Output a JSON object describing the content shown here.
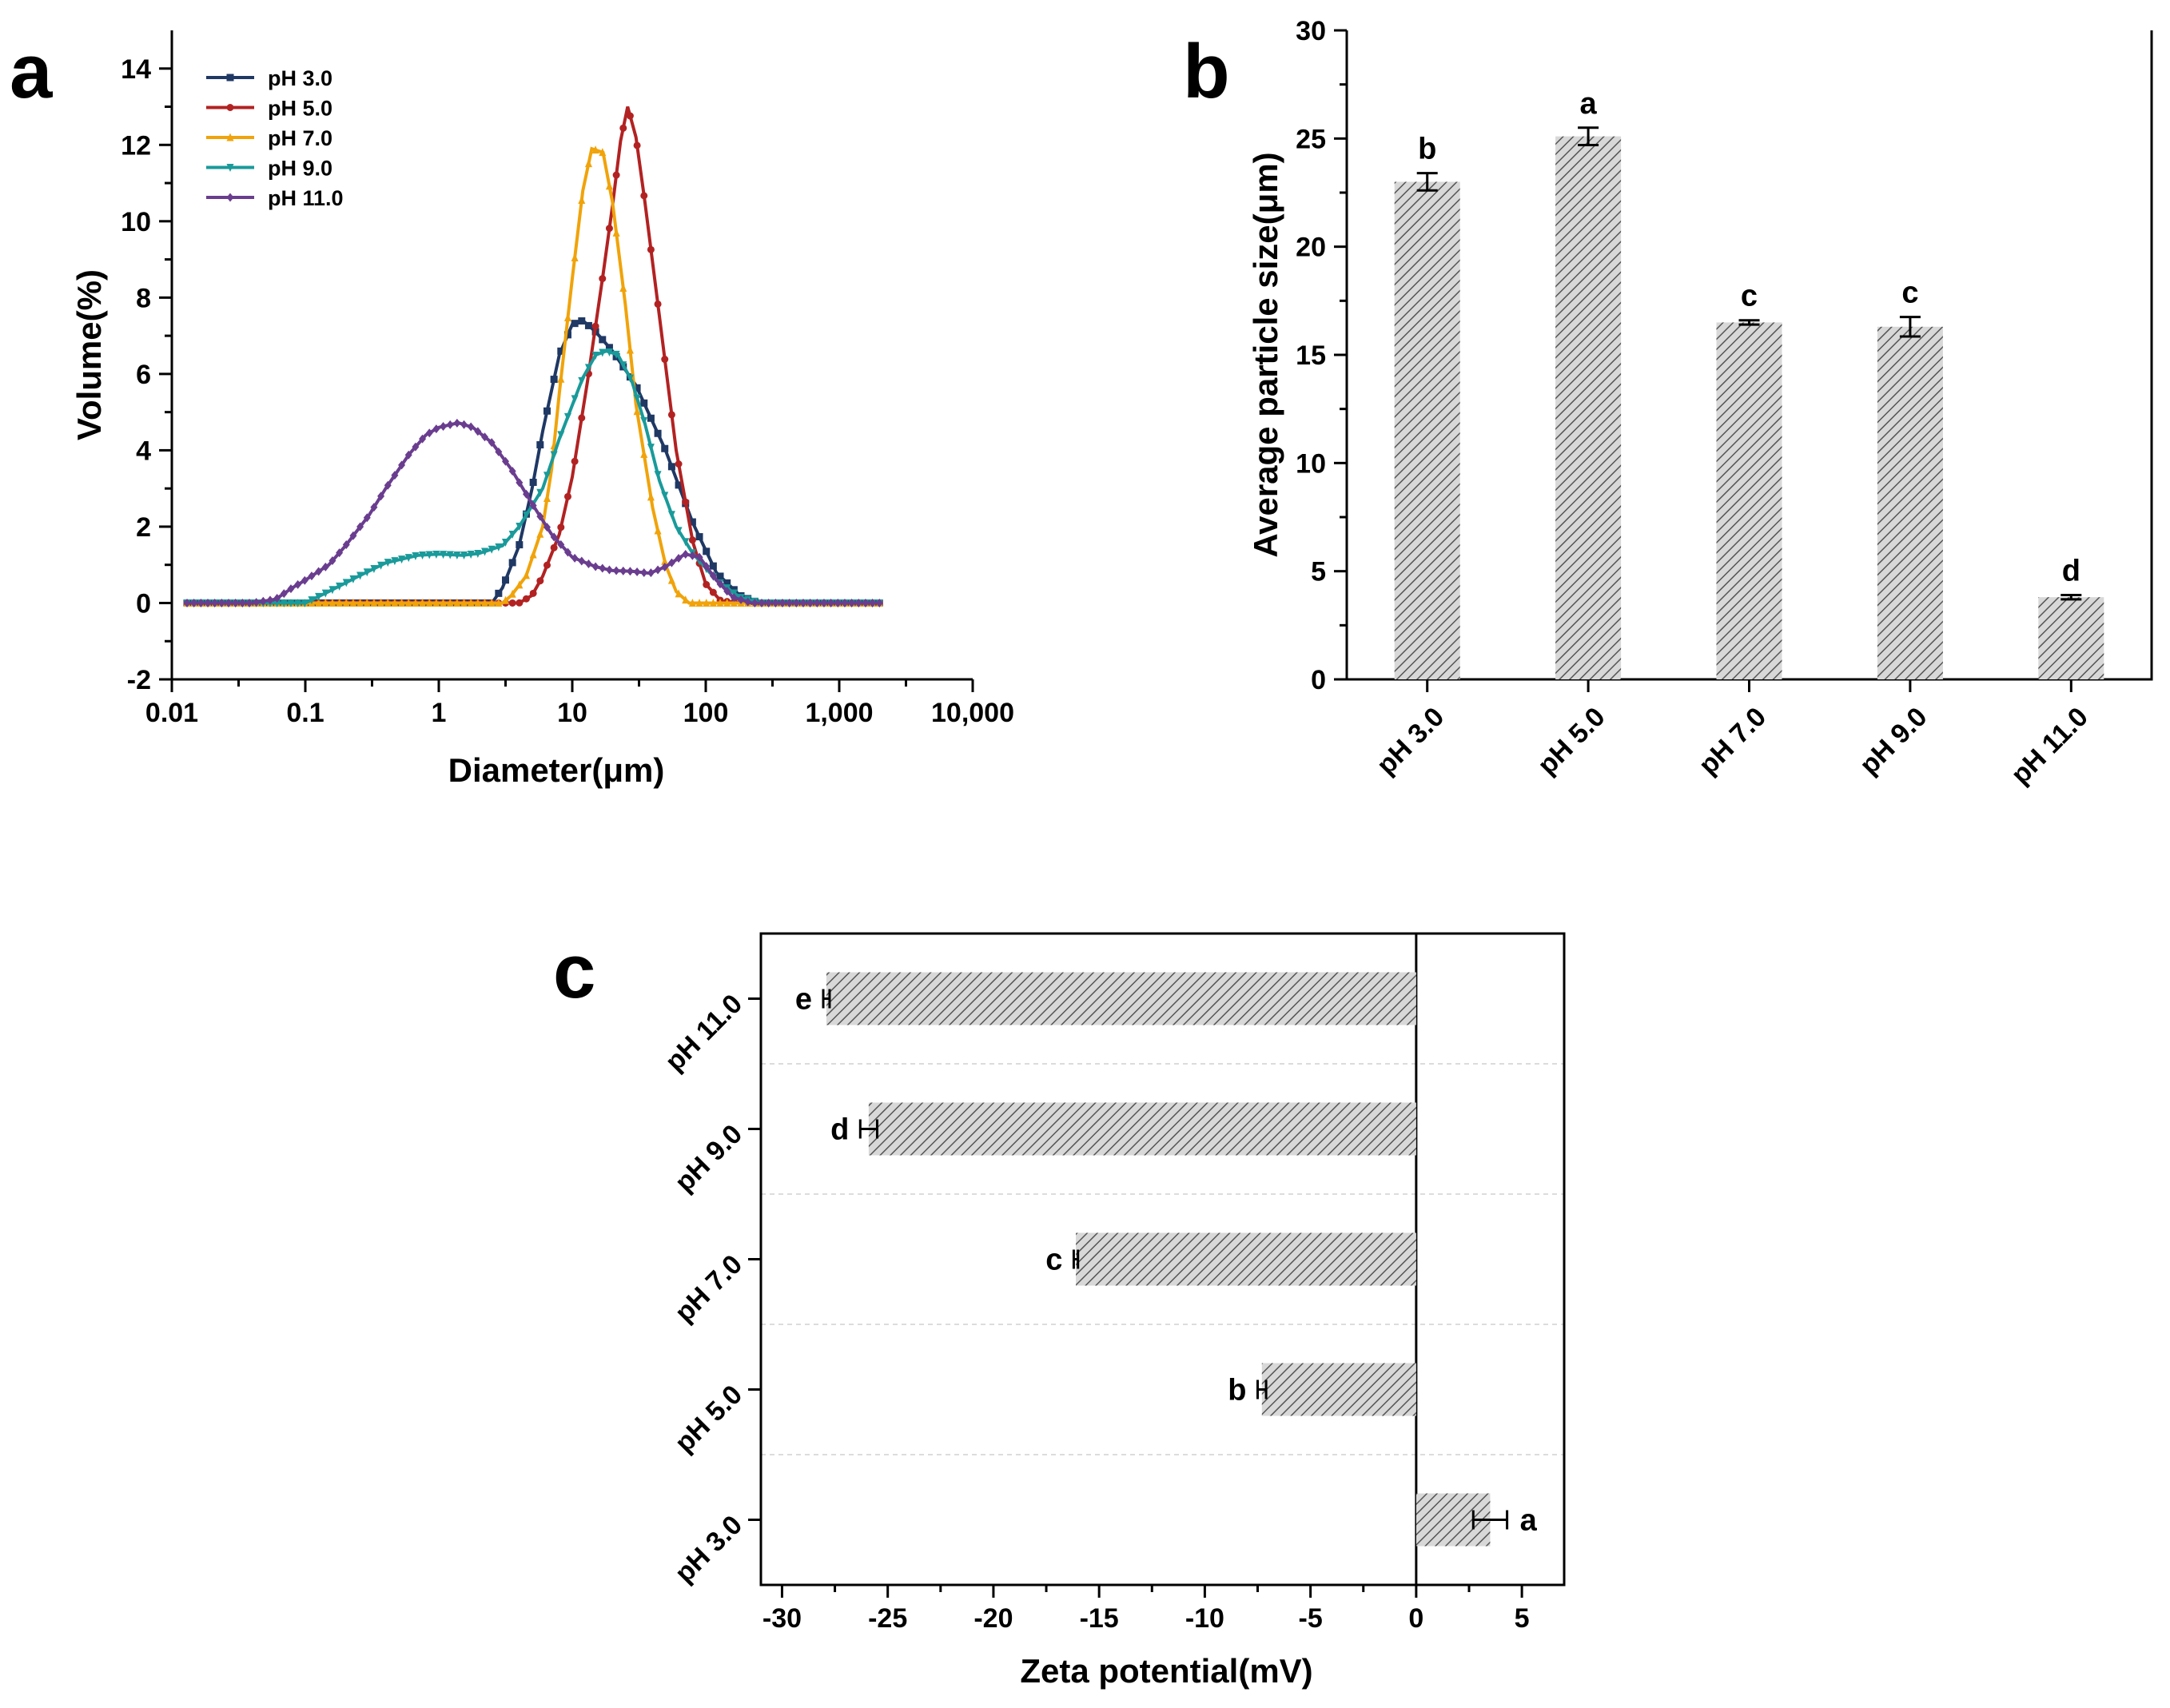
{
  "figure": {
    "panels": [
      "a",
      "b",
      "c"
    ]
  },
  "chart_data": [
    {
      "panel": "a",
      "type": "line",
      "title": "",
      "xlabel": "Diameter(μm)",
      "ylabel": "Volume(%)",
      "xscale": "log",
      "xlim": [
        0.01,
        10000
      ],
      "ylim": [
        -2,
        15
      ],
      "xticks": [
        0.01,
        0.1,
        1,
        10,
        100,
        1000,
        10000
      ],
      "xtick_labels": [
        "0.01",
        "0.1",
        "1",
        "10",
        "100",
        "1,000",
        "10,000"
      ],
      "yticks": [
        -2,
        0,
        2,
        4,
        6,
        8,
        10,
        12,
        14
      ],
      "ytick_labels": [
        "-2",
        "0",
        "2",
        "4",
        "6",
        "8",
        "10",
        "12",
        "14"
      ],
      "legend_position": "top-left",
      "series": [
        {
          "name": "pH 3.0",
          "color": "#1f3864",
          "marker": "square",
          "points": [
            [
              0.013,
              0
            ],
            [
              1.5,
              0
            ],
            [
              2.5,
              0
            ],
            [
              3,
              0.4
            ],
            [
              4,
              1.5
            ],
            [
              5,
              3
            ],
            [
              6,
              4.5
            ],
            [
              8,
              6.5
            ],
            [
              10,
              7.3
            ],
            [
              12,
              7.4
            ],
            [
              15,
              7.1
            ],
            [
              20,
              6.6
            ],
            [
              30,
              5.7
            ],
            [
              50,
              4.0
            ],
            [
              80,
              2.1
            ],
            [
              120,
              0.8
            ],
            [
              180,
              0.2
            ],
            [
              250,
              0
            ],
            [
              500,
              0
            ],
            [
              2000,
              0
            ]
          ]
        },
        {
          "name": "pH 5.0",
          "color": "#b22222",
          "marker": "circle",
          "points": [
            [
              0.013,
              0
            ],
            [
              2.5,
              0
            ],
            [
              4,
              0
            ],
            [
              5,
              0.2
            ],
            [
              6,
              0.7
            ],
            [
              8,
              1.8
            ],
            [
              10,
              3.3
            ],
            [
              13,
              5.8
            ],
            [
              17,
              8.6
            ],
            [
              20,
              10.4
            ],
            [
              23,
              12.1
            ],
            [
              26,
              13.0
            ],
            [
              30,
              12.2
            ],
            [
              35,
              10.5
            ],
            [
              45,
              7.5
            ],
            [
              60,
              4.0
            ],
            [
              80,
              1.6
            ],
            [
              100,
              0.5
            ],
            [
              130,
              0.05
            ],
            [
              200,
              0
            ],
            [
              2000,
              0
            ]
          ]
        },
        {
          "name": "pH 7.0",
          "color": "#f0a30a",
          "marker": "triangle-up",
          "points": [
            [
              0.013,
              0
            ],
            [
              2,
              0
            ],
            [
              3,
              0
            ],
            [
              3.5,
              0.2
            ],
            [
              4.5,
              0.7
            ],
            [
              6,
              2.0
            ],
            [
              7,
              3.5
            ],
            [
              8,
              5.5
            ],
            [
              10,
              8.5
            ],
            [
              12,
              10.8
            ],
            [
              14,
              11.9
            ],
            [
              17,
              11.8
            ],
            [
              20,
              10.5
            ],
            [
              25,
              7.8
            ],
            [
              30,
              5.2
            ],
            [
              40,
              2.5
            ],
            [
              50,
              1.0
            ],
            [
              60,
              0.3
            ],
            [
              75,
              0
            ],
            [
              200,
              0
            ],
            [
              2000,
              0
            ]
          ]
        },
        {
          "name": "pH 9.0",
          "color": "#1a9a9a",
          "marker": "triangle-down",
          "points": [
            [
              0.013,
              0
            ],
            [
              0.05,
              0
            ],
            [
              0.1,
              0
            ],
            [
              0.15,
              0.3
            ],
            [
              0.25,
              0.7
            ],
            [
              0.4,
              1.05
            ],
            [
              0.7,
              1.25
            ],
            [
              1,
              1.28
            ],
            [
              1.5,
              1.25
            ],
            [
              2,
              1.3
            ],
            [
              3,
              1.5
            ],
            [
              4,
              2.0
            ],
            [
              6,
              3.0
            ],
            [
              8,
              4.3
            ],
            [
              12,
              5.9
            ],
            [
              15,
              6.5
            ],
            [
              18,
              6.6
            ],
            [
              22,
              6.5
            ],
            [
              28,
              5.8
            ],
            [
              35,
              4.7
            ],
            [
              45,
              3.2
            ],
            [
              60,
              2.0
            ],
            [
              80,
              1.3
            ],
            [
              120,
              0.6
            ],
            [
              180,
              0.15
            ],
            [
              260,
              0
            ],
            [
              500,
              0
            ],
            [
              2000,
              0
            ]
          ]
        },
        {
          "name": "pH 11.0",
          "color": "#6a3d8f",
          "marker": "diamond",
          "points": [
            [
              0.013,
              0
            ],
            [
              0.04,
              0
            ],
            [
              0.06,
              0.1
            ],
            [
              0.08,
              0.4
            ],
            [
              0.1,
              0.6
            ],
            [
              0.15,
              1.0
            ],
            [
              0.2,
              1.5
            ],
            [
              0.3,
              2.3
            ],
            [
              0.4,
              3.0
            ],
            [
              0.6,
              3.9
            ],
            [
              0.8,
              4.4
            ],
            [
              1,
              4.6
            ],
            [
              1.4,
              4.72
            ],
            [
              1.8,
              4.6
            ],
            [
              2.5,
              4.2
            ],
            [
              3.5,
              3.5
            ],
            [
              5,
              2.6
            ],
            [
              7,
              1.8
            ],
            [
              10,
              1.2
            ],
            [
              15,
              0.95
            ],
            [
              20,
              0.85
            ],
            [
              28,
              0.83
            ],
            [
              38,
              0.78
            ],
            [
              50,
              0.95
            ],
            [
              70,
              1.28
            ],
            [
              90,
              1.2
            ],
            [
              120,
              0.6
            ],
            [
              160,
              0.15
            ],
            [
              220,
              0
            ],
            [
              500,
              0
            ],
            [
              2000,
              0
            ]
          ]
        }
      ]
    },
    {
      "panel": "b",
      "type": "bar",
      "title": "",
      "xlabel": "",
      "ylabel": "Average particle size(μm)",
      "ylim": [
        0,
        30
      ],
      "yticks": [
        0,
        5,
        10,
        15,
        20,
        25,
        30
      ],
      "ytick_labels": [
        "0",
        "5",
        "10",
        "15",
        "20",
        "25",
        "30"
      ],
      "categories": [
        "pH 3.0",
        "pH 5.0",
        "pH 7.0",
        "pH 9.0",
        "pH 11.0"
      ],
      "values": [
        23.0,
        25.1,
        16.5,
        16.3,
        3.8
      ],
      "errors": [
        0.4,
        0.4,
        0.1,
        0.45,
        0.1
      ],
      "significance": [
        "b",
        "a",
        "c",
        "c",
        "d"
      ],
      "bar_fill": "hatched gray"
    },
    {
      "panel": "c",
      "type": "bar",
      "orientation": "horizontal",
      "title": "",
      "xlabel": "Zeta potential(mV)",
      "ylabel": "",
      "xlim": [
        -31,
        7
      ],
      "xticks": [
        -30,
        -25,
        -20,
        -15,
        -10,
        -5,
        0,
        5
      ],
      "xtick_labels": [
        "-30",
        "-25",
        "-20",
        "-15",
        "-10",
        "-5",
        "0",
        "5"
      ],
      "categories": [
        "pH 3.0",
        "pH 5.0",
        "pH 7.0",
        "pH 9.0",
        "pH 11.0"
      ],
      "values": [
        3.5,
        -7.3,
        -16.1,
        -25.9,
        -27.9
      ],
      "errors": [
        0.8,
        0.2,
        0.1,
        0.4,
        0.15
      ],
      "significance": [
        "a",
        "b",
        "c",
        "d",
        "e"
      ],
      "bar_fill": "hatched gray",
      "gridlines": "horizontal dashed"
    }
  ]
}
